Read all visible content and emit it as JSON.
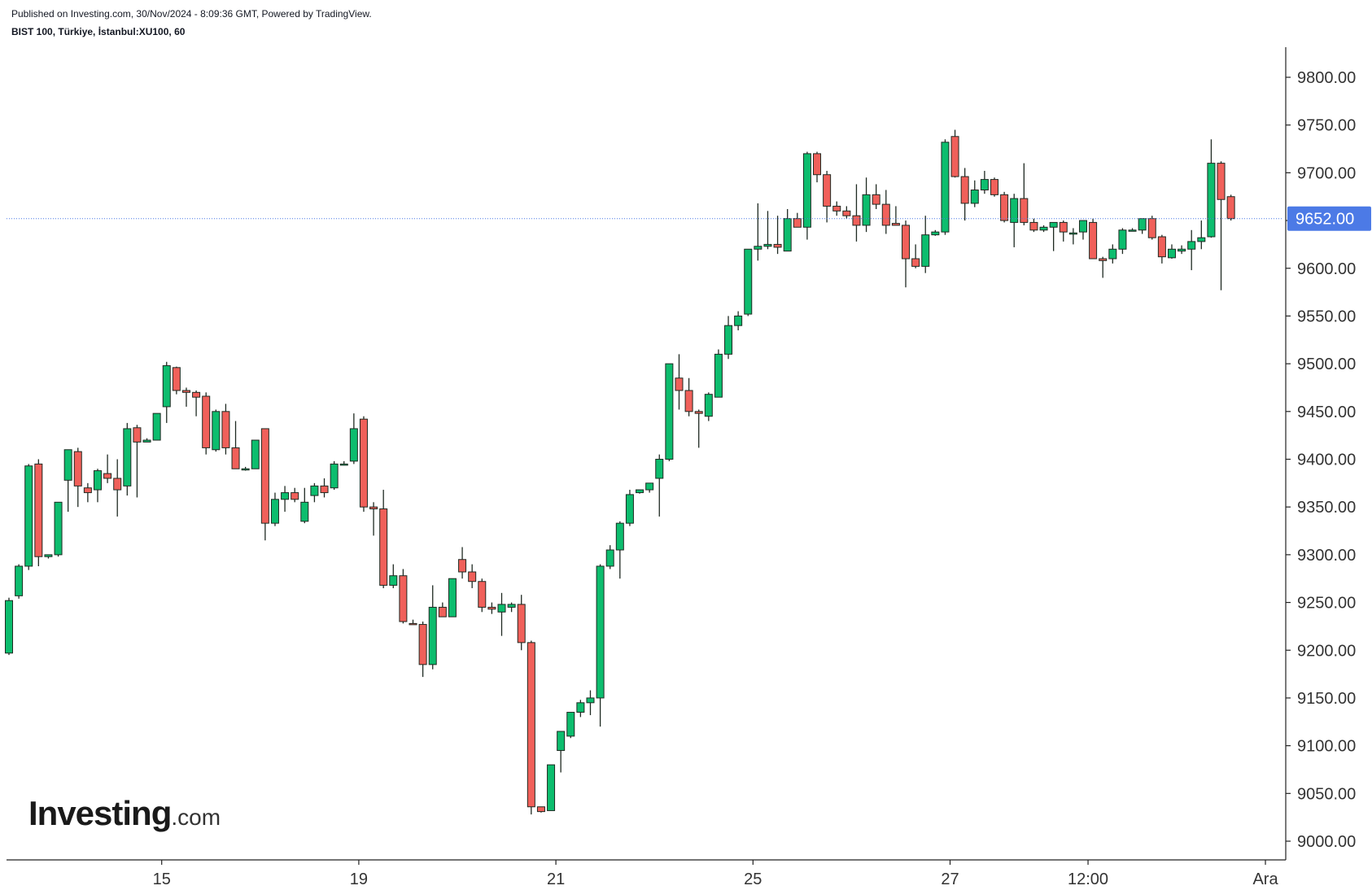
{
  "header": {
    "published": "Published on Investing.com, 30/Nov/2024 - 8:09:36 GMT, Powered by TradingView.",
    "symbol": "BIST 100, Türkiye, İstanbul:XU100, 60"
  },
  "logo": {
    "main": "Investing",
    "suffix": ".com"
  },
  "colors": {
    "up": "#0dbd6e",
    "down": "#f0605a",
    "wick": "#1f2a22",
    "current_price_bg": "#4c7ae6",
    "price_line": "#4c7ae6"
  },
  "chart_data": {
    "type": "candlestick",
    "interval": "60",
    "ylim": [
      8975,
      9850
    ],
    "y_ticks": [
      9000,
      9050,
      9100,
      9150,
      9200,
      9250,
      9300,
      9350,
      9400,
      9450,
      9500,
      9550,
      9600,
      9650,
      9700,
      9750,
      9800
    ],
    "y_tick_labels": [
      "9000.00",
      "9050.00",
      "9100.00",
      "9150.00",
      "9200.00",
      "9250.00",
      "9300.00",
      "9350.00",
      "9400.00",
      "9450.00",
      "9500.00",
      "9550.00",
      "9600.00",
      "9650.00",
      "9700.00",
      "9750.00",
      "9800.00"
    ],
    "x_ticks": [
      {
        "label": "15",
        "index": 15.5
      },
      {
        "label": "19",
        "index": 35.5
      },
      {
        "label": "21",
        "index": 55.5
      },
      {
        "label": "25",
        "index": 75.5
      },
      {
        "label": "27",
        "index": 95.5
      },
      {
        "label": "12:00",
        "index": 109.5
      },
      {
        "label": "Ara",
        "index": 127.5
      }
    ],
    "current_price": 9652,
    "current_price_label": "9652.00",
    "ohlc": [
      [
        9197,
        9255,
        9195,
        9252
      ],
      [
        9257,
        9290,
        9254,
        9288
      ],
      [
        9288,
        9395,
        9284,
        9393
      ],
      [
        9395,
        9400,
        9288,
        9298
      ],
      [
        9298,
        9300,
        9296,
        9300
      ],
      [
        9300,
        9355,
        9298,
        9355
      ],
      [
        9378,
        9410,
        9345,
        9410
      ],
      [
        9408,
        9412,
        9350,
        9372
      ],
      [
        9370,
        9375,
        9355,
        9365
      ],
      [
        9368,
        9390,
        9355,
        9388
      ],
      [
        9385,
        9405,
        9375,
        9380
      ],
      [
        9380,
        9400,
        9340,
        9368
      ],
      [
        9372,
        9438,
        9362,
        9432
      ],
      [
        9433,
        9436,
        9360,
        9418
      ],
      [
        9418,
        9422,
        9418,
        9420
      ],
      [
        9420,
        9448,
        9420,
        9448
      ],
      [
        9455,
        9502,
        9438,
        9498
      ],
      [
        9496,
        9497,
        9468,
        9472
      ],
      [
        9472,
        9475,
        9455,
        9470
      ],
      [
        9470,
        9472,
        9445,
        9465
      ],
      [
        9466,
        9470,
        9405,
        9412
      ],
      [
        9410,
        9452,
        9408,
        9450
      ],
      [
        9450,
        9458,
        9405,
        9412
      ],
      [
        9412,
        9440,
        9390,
        9390
      ],
      [
        9390,
        9392,
        9388,
        9390
      ],
      [
        9390,
        9420,
        9390,
        9420
      ],
      [
        9432,
        9432,
        9315,
        9333
      ],
      [
        9333,
        9365,
        9330,
        9358
      ],
      [
        9358,
        9372,
        9345,
        9365
      ],
      [
        9365,
        9370,
        9355,
        9358
      ],
      [
        9335,
        9370,
        9333,
        9355
      ],
      [
        9362,
        9375,
        9355,
        9372
      ],
      [
        9372,
        9380,
        9360,
        9365
      ],
      [
        9370,
        9398,
        9368,
        9395
      ],
      [
        9395,
        9398,
        9395,
        9395
      ],
      [
        9398,
        9448,
        9395,
        9432
      ],
      [
        9442,
        9445,
        9345,
        9350
      ],
      [
        9350,
        9355,
        9320,
        9348
      ],
      [
        9348,
        9368,
        9265,
        9268
      ],
      [
        9268,
        9290,
        9265,
        9278
      ],
      [
        9278,
        9285,
        9228,
        9230
      ],
      [
        9228,
        9232,
        9227,
        9227
      ],
      [
        9227,
        9230,
        9172,
        9185
      ],
      [
        9185,
        9268,
        9180,
        9245
      ],
      [
        9245,
        9250,
        9235,
        9235
      ],
      [
        9235,
        9275,
        9235,
        9275
      ],
      [
        9295,
        9308,
        9275,
        9282
      ],
      [
        9282,
        9290,
        9265,
        9272
      ],
      [
        9272,
        9275,
        9240,
        9245
      ],
      [
        9245,
        9250,
        9238,
        9243
      ],
      [
        9240,
        9260,
        9215,
        9248
      ],
      [
        9245,
        9250,
        9240,
        9248
      ],
      [
        9248,
        9258,
        9200,
        9208
      ],
      [
        9208,
        9210,
        9028,
        9036
      ],
      [
        9036,
        9036,
        9030,
        9031
      ],
      [
        9032,
        9080,
        9032,
        9080
      ],
      [
        9095,
        9115,
        9072,
        9115
      ],
      [
        9110,
        9135,
        9108,
        9135
      ],
      [
        9135,
        9148,
        9130,
        9145
      ],
      [
        9145,
        9158,
        9132,
        9150
      ],
      [
        9150,
        9290,
        9120,
        9288
      ],
      [
        9288,
        9310,
        9285,
        9305
      ],
      [
        9305,
        9335,
        9275,
        9333
      ],
      [
        9333,
        9368,
        9330,
        9363
      ],
      [
        9365,
        9368,
        9364,
        9368
      ],
      [
        9368,
        9375,
        9365,
        9375
      ],
      [
        9380,
        9405,
        9340,
        9400
      ],
      [
        9400,
        9500,
        9398,
        9500
      ],
      [
        9485,
        9510,
        9452,
        9472
      ],
      [
        9472,
        9485,
        9445,
        9450
      ],
      [
        9450,
        9452,
        9412,
        9448
      ],
      [
        9445,
        9470,
        9440,
        9468
      ],
      [
        9465,
        9515,
        9465,
        9510
      ],
      [
        9510,
        9550,
        9505,
        9540
      ],
      [
        9540,
        9555,
        9535,
        9550
      ],
      [
        9552,
        9620,
        9550,
        9620
      ],
      [
        9620,
        9668,
        9608,
        9623
      ],
      [
        9623,
        9660,
        9620,
        9625
      ],
      [
        9625,
        9655,
        9615,
        9622
      ],
      [
        9618,
        9662,
        9618,
        9652
      ],
      [
        9652,
        9658,
        9643,
        9643
      ],
      [
        9643,
        9722,
        9630,
        9720
      ],
      [
        9720,
        9722,
        9690,
        9698
      ],
      [
        9698,
        9702,
        9648,
        9665
      ],
      [
        9665,
        9670,
        9655,
        9660
      ],
      [
        9660,
        9665,
        9652,
        9655
      ],
      [
        9655,
        9688,
        9628,
        9645
      ],
      [
        9645,
        9695,
        9638,
        9677
      ],
      [
        9677,
        9688,
        9662,
        9667
      ],
      [
        9667,
        9682,
        9636,
        9645
      ],
      [
        9647,
        9665,
        9645,
        9645
      ],
      [
        9645,
        9650,
        9580,
        9610
      ],
      [
        9610,
        9625,
        9600,
        9602
      ],
      [
        9602,
        9655,
        9595,
        9635
      ],
      [
        9635,
        9640,
        9634,
        9638
      ],
      [
        9638,
        9735,
        9635,
        9732
      ],
      [
        9738,
        9745,
        9695,
        9696
      ],
      [
        9696,
        9705,
        9650,
        9668
      ],
      [
        9668,
        9692,
        9664,
        9682
      ],
      [
        9682,
        9702,
        9678,
        9693
      ],
      [
        9693,
        9695,
        9675,
        9677
      ],
      [
        9677,
        9680,
        9648,
        9650
      ],
      [
        9648,
        9678,
        9622,
        9673
      ],
      [
        9673,
        9710,
        9645,
        9648
      ],
      [
        9648,
        9652,
        9638,
        9640
      ],
      [
        9640,
        9645,
        9638,
        9643
      ],
      [
        9643,
        9648,
        9618,
        9648
      ],
      [
        9648,
        9650,
        9628,
        9638
      ],
      [
        9637,
        9642,
        9625,
        9637
      ],
      [
        9638,
        9650,
        9630,
        9650
      ],
      [
        9648,
        9652,
        9610,
        9610
      ],
      [
        9610,
        9612,
        9590,
        9608
      ],
      [
        9610,
        9625,
        9605,
        9620
      ],
      [
        9620,
        9642,
        9615,
        9640
      ],
      [
        9640,
        9642,
        9640,
        9640
      ],
      [
        9640,
        9652,
        9636,
        9652
      ],
      [
        9652,
        9655,
        9630,
        9632
      ],
      [
        9633,
        9635,
        9605,
        9612
      ],
      [
        9611,
        9625,
        9610,
        9620
      ],
      [
        9618,
        9624,
        9615,
        9620
      ],
      [
        9620,
        9640,
        9598,
        9628
      ],
      [
        9628,
        9650,
        9620,
        9632
      ],
      [
        9633,
        9735,
        9632,
        9710
      ],
      [
        9710,
        9712,
        9577,
        9672
      ],
      [
        9675,
        9677,
        9650,
        9652
      ]
    ]
  }
}
